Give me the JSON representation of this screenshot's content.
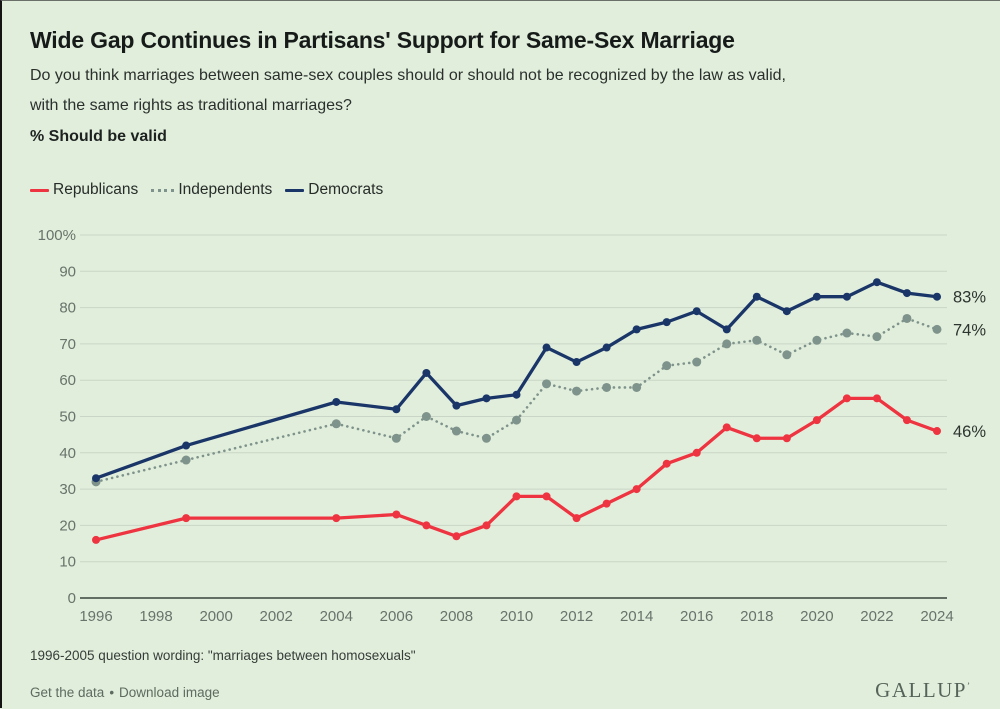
{
  "page": {
    "background": "#e1eedc"
  },
  "header": {
    "title": "Wide Gap Continues in Partisans' Support for Same-Sex Marriage",
    "question_line1": "Do you think marriages between same-sex couples should or should not be recognized by the law as valid,",
    "question_line2": "with the same rights as traditional marriages?",
    "metric_label": "% Should be valid"
  },
  "legend": [
    {
      "label": "Republicans",
      "color": "#ee3440",
      "style": "solid"
    },
    {
      "label": "Independents",
      "color": "#7e938b",
      "style": "dotted"
    },
    {
      "label": "Democrats",
      "color": "#1a3568",
      "style": "solid"
    }
  ],
  "chart_data": {
    "type": "line",
    "x": [
      1996,
      1999,
      2004,
      2006,
      2007,
      2008,
      2009,
      2010,
      2011,
      2012,
      2013,
      2014,
      2015,
      2016,
      2017,
      2018,
      2019,
      2020,
      2021,
      2022,
      2023,
      2024
    ],
    "series": [
      {
        "name": "Republicans",
        "color": "#ee3440",
        "style": "solid",
        "values": [
          16,
          22,
          22,
          23,
          20,
          17,
          20,
          28,
          28,
          22,
          26,
          30,
          37,
          40,
          47,
          44,
          44,
          49,
          55,
          55,
          49,
          46
        ],
        "end_label": "46%"
      },
      {
        "name": "Independents",
        "color": "#7e938b",
        "style": "dotted",
        "values": [
          32,
          38,
          48,
          44,
          50,
          46,
          44,
          49,
          59,
          57,
          58,
          58,
          64,
          65,
          70,
          71,
          67,
          71,
          73,
          72,
          77,
          74
        ],
        "end_label": "74%"
      },
      {
        "name": "Democrats",
        "color": "#1a3568",
        "style": "solid",
        "values": [
          33,
          42,
          54,
          52,
          62,
          53,
          55,
          56,
          69,
          65,
          69,
          74,
          76,
          79,
          74,
          83,
          79,
          83,
          83,
          87,
          84,
          83
        ],
        "end_label": "83%"
      }
    ],
    "ylim": [
      0,
      100
    ],
    "yticks": [
      0,
      10,
      20,
      30,
      40,
      50,
      60,
      70,
      80,
      90,
      100
    ],
    "ytick_labels": [
      "0",
      "10",
      "20",
      "30",
      "40",
      "50",
      "60",
      "70",
      "80",
      "90",
      "100%"
    ],
    "xticks": [
      1996,
      1998,
      2000,
      2002,
      2004,
      2006,
      2008,
      2010,
      2012,
      2014,
      2016,
      2018,
      2020,
      2022,
      2024
    ],
    "grid": true,
    "legend_position": "top-left"
  },
  "footnote": "1996-2005 question wording: \"marriages between homosexuals\"",
  "footer": {
    "get_data_label": "Get the data",
    "download_label": "Download image",
    "separator": "•",
    "brand": "GALLUP",
    "brand_mark": "ʼ"
  }
}
